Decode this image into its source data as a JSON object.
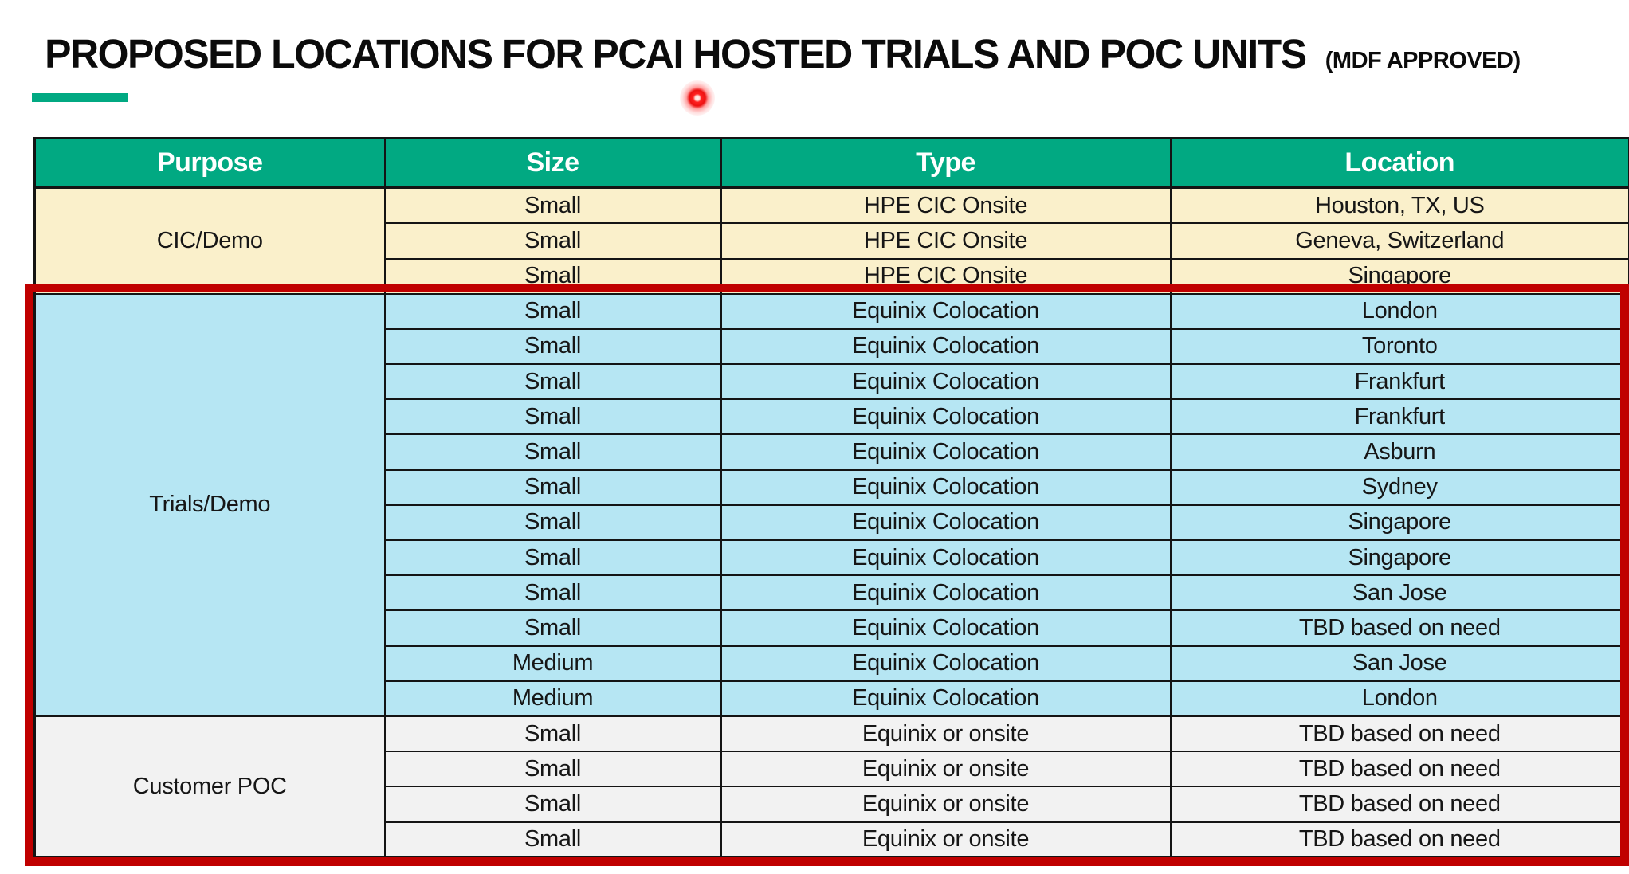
{
  "title": {
    "main": "PROPOSED LOCATIONS FOR PCAI HOSTED TRIALS AND POC UNITS",
    "suffix": "(MDF APPROVED)"
  },
  "colors": {
    "header_green": "#01A982",
    "accent_bar_green": "#01A982",
    "cic_demo_cream": "#FAF0CB",
    "trials_demo_blue": "#B6E6F3",
    "customer_poc_gray": "#F2F2F2",
    "highlight_red": "#C00000",
    "grid_black": "#141414",
    "laser_dot_red": "#FF2020"
  },
  "table": {
    "headers": [
      "Purpose",
      "Size",
      "Type",
      "Location"
    ],
    "groups": [
      {
        "purpose": "CIC/Demo",
        "theme": "cream",
        "rows": [
          [
            "Small",
            "HPE CIC Onsite",
            "Houston, TX, US"
          ],
          [
            "Small",
            "HPE CIC Onsite",
            "Geneva, Switzerland"
          ],
          [
            "Small",
            "HPE CIC Onsite",
            "Singapore"
          ]
        ]
      },
      {
        "purpose": "Trials/Demo",
        "theme": "blue",
        "rows": [
          [
            "Small",
            "Equinix Colocation",
            "London"
          ],
          [
            "Small",
            "Equinix Colocation",
            "Toronto"
          ],
          [
            "Small",
            "Equinix Colocation",
            "Frankfurt"
          ],
          [
            "Small",
            "Equinix Colocation",
            "Frankfurt"
          ],
          [
            "Small",
            "Equinix Colocation",
            "Asburn"
          ],
          [
            "Small",
            "Equinix Colocation",
            "Sydney"
          ],
          [
            "Small",
            "Equinix Colocation",
            "Singapore"
          ],
          [
            "Small",
            "Equinix Colocation",
            "Singapore"
          ],
          [
            "Small",
            "Equinix Colocation",
            "San Jose"
          ],
          [
            "Small",
            "Equinix Colocation",
            "TBD based on need"
          ],
          [
            "Medium",
            "Equinix Colocation",
            "San Jose"
          ],
          [
            "Medium",
            "Equinix Colocation",
            "London"
          ]
        ]
      },
      {
        "purpose": "Customer POC",
        "theme": "gray",
        "rows": [
          [
            "Small",
            "Equinix or onsite",
            "TBD based on need"
          ],
          [
            "Small",
            "Equinix or onsite",
            "TBD based on need"
          ],
          [
            "Small",
            "Equinix or onsite",
            "TBD based on need"
          ],
          [
            "Small",
            "Equinix or onsite",
            "TBD based on need"
          ]
        ]
      }
    ]
  },
  "annotations": {
    "highlight_box_color": "#C00000",
    "highlight_covers": "Trials/Demo and Customer POC sections",
    "laser_pointer_color": "#FF2020"
  }
}
